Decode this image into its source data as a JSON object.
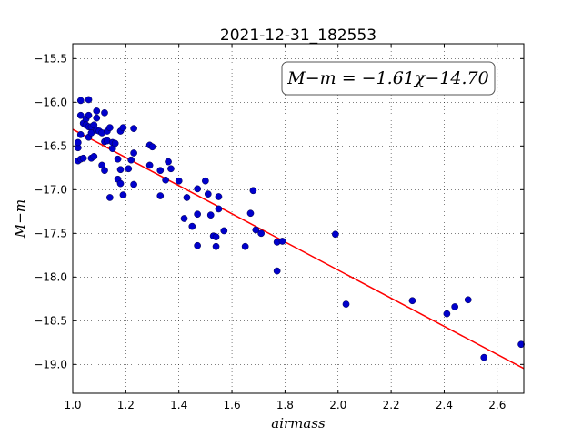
{
  "chart_data": {
    "type": "scatter",
    "title": "2021-12-31_182553",
    "xlabel": "airmass",
    "ylabel": "M−m",
    "annotation": "M−m = −1.61χ−14.70",
    "xlim": [
      1.0,
      2.7
    ],
    "ylim": [
      -19.33,
      -15.33
    ],
    "xticks": [
      1.0,
      1.2,
      1.4,
      1.6,
      1.8,
      2.0,
      2.2,
      2.4,
      2.6
    ],
    "yticks": [
      -15.5,
      -16.0,
      -16.5,
      -17.0,
      -17.5,
      -18.0,
      -18.5,
      -19.0
    ],
    "xtick_labels": [
      "1.0",
      "1.2",
      "1.4",
      "1.6",
      "1.8",
      "2.0",
      "2.2",
      "2.4",
      "2.6"
    ],
    "ytick_labels": [
      "−15.5",
      "−16.0",
      "−16.5",
      "−17.0",
      "−17.5",
      "−18.0",
      "−18.5",
      "−19.0"
    ],
    "grid": true,
    "fit": {
      "slope": -1.61,
      "intercept": -14.7,
      "color": "#ff0000"
    },
    "point_color": "#0000cc",
    "points": [
      [
        1.02,
        -16.67
      ],
      [
        1.02,
        -16.52
      ],
      [
        1.02,
        -16.46
      ],
      [
        1.03,
        -16.65
      ],
      [
        1.03,
        -16.15
      ],
      [
        1.03,
        -15.98
      ],
      [
        1.03,
        -16.37
      ],
      [
        1.04,
        -16.24
      ],
      [
        1.04,
        -16.64
      ],
      [
        1.05,
        -16.19
      ],
      [
        1.05,
        -16.26
      ],
      [
        1.06,
        -15.97
      ],
      [
        1.06,
        -16.28
      ],
      [
        1.06,
        -16.15
      ],
      [
        1.06,
        -16.4
      ],
      [
        1.07,
        -16.35
      ],
      [
        1.07,
        -16.28
      ],
      [
        1.07,
        -16.64
      ],
      [
        1.08,
        -16.62
      ],
      [
        1.08,
        -16.26
      ],
      [
        1.09,
        -16.1
      ],
      [
        1.09,
        -16.32
      ],
      [
        1.09,
        -16.18
      ],
      [
        1.1,
        -16.33
      ],
      [
        1.11,
        -16.35
      ],
      [
        1.11,
        -16.72
      ],
      [
        1.12,
        -16.45
      ],
      [
        1.12,
        -16.12
      ],
      [
        1.12,
        -16.78
      ],
      [
        1.13,
        -16.33
      ],
      [
        1.13,
        -16.44
      ],
      [
        1.14,
        -16.29
      ],
      [
        1.14,
        -17.09
      ],
      [
        1.15,
        -16.46
      ],
      [
        1.15,
        -16.53
      ],
      [
        1.16,
        -16.47
      ],
      [
        1.17,
        -16.65
      ],
      [
        1.17,
        -16.88
      ],
      [
        1.18,
        -16.93
      ],
      [
        1.18,
        -16.33
      ],
      [
        1.18,
        -16.77
      ],
      [
        1.19,
        -16.29
      ],
      [
        1.19,
        -17.06
      ],
      [
        1.21,
        -16.76
      ],
      [
        1.22,
        -16.66
      ],
      [
        1.23,
        -16.58
      ],
      [
        1.23,
        -16.94
      ],
      [
        1.23,
        -16.3
      ],
      [
        1.29,
        -16.49
      ],
      [
        1.29,
        -16.72
      ],
      [
        1.3,
        -16.51
      ],
      [
        1.33,
        -16.78
      ],
      [
        1.33,
        -17.07
      ],
      [
        1.35,
        -16.89
      ],
      [
        1.36,
        -16.68
      ],
      [
        1.37,
        -16.76
      ],
      [
        1.4,
        -16.9
      ],
      [
        1.42,
        -17.33
      ],
      [
        1.43,
        -17.09
      ],
      [
        1.45,
        -17.42
      ],
      [
        1.47,
        -16.99
      ],
      [
        1.47,
        -17.28
      ],
      [
        1.47,
        -17.64
      ],
      [
        1.5,
        -16.9
      ],
      [
        1.51,
        -17.05
      ],
      [
        1.52,
        -17.29
      ],
      [
        1.53,
        -17.53
      ],
      [
        1.54,
        -17.54
      ],
      [
        1.54,
        -17.65
      ],
      [
        1.55,
        -17.08
      ],
      [
        1.55,
        -17.22
      ],
      [
        1.57,
        -17.47
      ],
      [
        1.65,
        -17.65
      ],
      [
        1.67,
        -17.27
      ],
      [
        1.68,
        -17.01
      ],
      [
        1.69,
        -17.46
      ],
      [
        1.71,
        -17.5
      ],
      [
        1.77,
        -17.6
      ],
      [
        1.77,
        -17.93
      ],
      [
        1.79,
        -17.59
      ],
      [
        1.99,
        -17.51
      ],
      [
        2.03,
        -18.31
      ],
      [
        2.28,
        -18.27
      ],
      [
        2.41,
        -18.42
      ],
      [
        2.44,
        -18.34
      ],
      [
        2.49,
        -18.26
      ],
      [
        2.55,
        -18.92
      ],
      [
        2.69,
        -18.77
      ]
    ]
  }
}
